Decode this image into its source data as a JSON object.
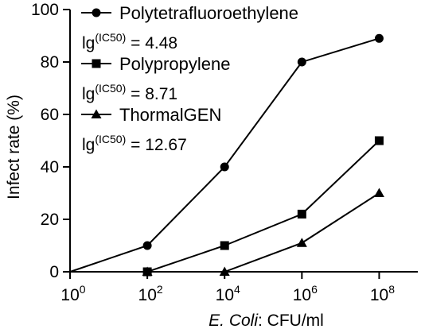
{
  "chart_data": {
    "type": "line",
    "ylabel": "Infect rate (%)",
    "xlabel_italic": "E. Coli",
    "xlabel_rest": ": CFU/ml",
    "x_tick_base": "10",
    "x_ticks": [
      0,
      2,
      4,
      6,
      8
    ],
    "x_scale": "log10",
    "y_ticks": [
      0,
      20,
      40,
      60,
      80,
      100
    ],
    "ylim": [
      0,
      100
    ],
    "xlim_exponent": [
      0,
      9
    ],
    "grid": false,
    "legend_position": "top-left",
    "ic50_prefix": "lg",
    "ic50_sup": "(IC50)",
    "series": [
      {
        "name": "Polytetrafluoroethylene",
        "marker": "circle",
        "ic50_text": " = 4.48",
        "x_exponent": [
          0,
          2,
          4,
          6,
          8
        ],
        "values": [
          0,
          10,
          40,
          80,
          89
        ]
      },
      {
        "name": "Polypropylene",
        "marker": "square",
        "ic50_text": " = 8.71",
        "x_exponent": [
          0,
          2,
          4,
          6,
          8
        ],
        "values": [
          0,
          0,
          10,
          22,
          50
        ]
      },
      {
        "name": "ThormalGEN",
        "marker": "triangle",
        "ic50_text": " = 12.67",
        "x_exponent": [
          0,
          2,
          4,
          6,
          8
        ],
        "values": [
          0,
          0,
          0,
          11,
          30
        ]
      }
    ],
    "colors": {
      "line": "#000000",
      "background": "#ffffff"
    }
  }
}
